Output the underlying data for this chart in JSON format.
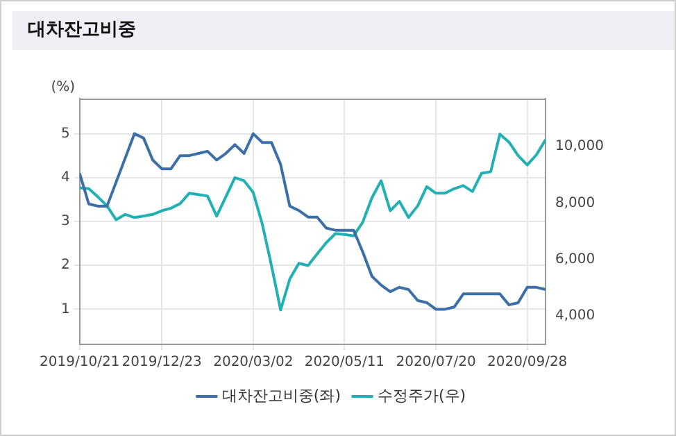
{
  "chart_data": {
    "type": "line",
    "title": "대차잔고비중",
    "ylabel": "(%)",
    "x": [
      "2019-10-21",
      "2019-10-28",
      "2019-11-04",
      "2019-11-11",
      "2019-11-18",
      "2019-11-25",
      "2019-12-02",
      "2019-12-09",
      "2019-12-16",
      "2019-12-23",
      "2019-12-30",
      "2020-01-06",
      "2020-01-13",
      "2020-01-20",
      "2020-01-27",
      "2020-02-03",
      "2020-02-10",
      "2020-02-17",
      "2020-02-24",
      "2020-03-02",
      "2020-03-09",
      "2020-03-16",
      "2020-03-23",
      "2020-03-30",
      "2020-04-06",
      "2020-04-13",
      "2020-04-20",
      "2020-04-27",
      "2020-05-04",
      "2020-05-11",
      "2020-05-18",
      "2020-05-25",
      "2020-06-01",
      "2020-06-08",
      "2020-06-15",
      "2020-06-22",
      "2020-06-29",
      "2020-07-06",
      "2020-07-13",
      "2020-07-20",
      "2020-07-27",
      "2020-08-03",
      "2020-08-10",
      "2020-08-17",
      "2020-08-24",
      "2020-08-31",
      "2020-09-07",
      "2020-09-14",
      "2020-09-21",
      "2020-09-28",
      "2020-10-05",
      "2020-10-12"
    ],
    "series": [
      {
        "name": "대차잔고비중(좌)",
        "color": "#3c6fa8",
        "values": [
          4.1,
          3.4,
          3.35,
          3.35,
          3.9,
          4.45,
          5.0,
          4.9,
          4.4,
          4.2,
          4.2,
          4.5,
          4.5,
          4.55,
          4.6,
          4.4,
          4.55,
          4.75,
          4.55,
          5.0,
          4.8,
          4.8,
          4.3,
          3.35,
          3.25,
          3.1,
          3.1,
          2.85,
          2.8,
          2.8,
          2.8,
          2.3,
          1.75,
          1.55,
          1.4,
          1.5,
          1.45,
          1.2,
          1.15,
          1.0,
          1.0,
          1.05,
          1.35,
          1.35,
          1.35,
          1.35,
          1.35,
          1.1,
          1.15,
          1.5,
          1.5,
          1.45
        ]
      },
      {
        "name": "수정주가(우)",
        "color": "#22b0b5",
        "axis": "y2",
        "values": [
          8540,
          8510,
          8220,
          7900,
          7410,
          7600,
          7490,
          7540,
          7600,
          7730,
          7820,
          7980,
          8350,
          8300,
          8250,
          7540,
          8220,
          8900,
          8790,
          8380,
          7250,
          5790,
          4220,
          5310,
          5870,
          5790,
          6200,
          6600,
          6920,
          6890,
          6840,
          7330,
          8190,
          8790,
          7730,
          8060,
          7490,
          7900,
          8580,
          8350,
          8350,
          8510,
          8620,
          8410,
          9060,
          9110,
          10440,
          10160,
          9680,
          9350,
          9710,
          10240
        ]
      }
    ],
    "xlim": [
      "2019-10-21",
      "2020-10-12"
    ],
    "xticks": [
      {
        "value": "2019-10-21",
        "label": "2019/10/21"
      },
      {
        "value": "2019-12-23",
        "label": "2019/12/23"
      },
      {
        "value": "2020-03-02",
        "label": "2020/03/02"
      },
      {
        "value": "2020-05-11",
        "label": "2020/05/11"
      },
      {
        "value": "2020-07-20",
        "label": "2020/07/20"
      },
      {
        "value": "2020-09-28",
        "label": "2020/09/28"
      }
    ],
    "ylim": [
      0.2,
      5.8
    ],
    "yticks": [
      1,
      2,
      3,
      4,
      5
    ],
    "y2lim": [
      3000,
      11700
    ],
    "y2ticks": [
      {
        "value": 4000,
        "label": "4,000"
      },
      {
        "value": 6000,
        "label": "6,000"
      },
      {
        "value": 8000,
        "label": "8,000"
      },
      {
        "value": 10000,
        "label": "10,000"
      }
    ],
    "grid": true,
    "legend": "bottom",
    "marker": "none",
    "line_style": "solid"
  }
}
